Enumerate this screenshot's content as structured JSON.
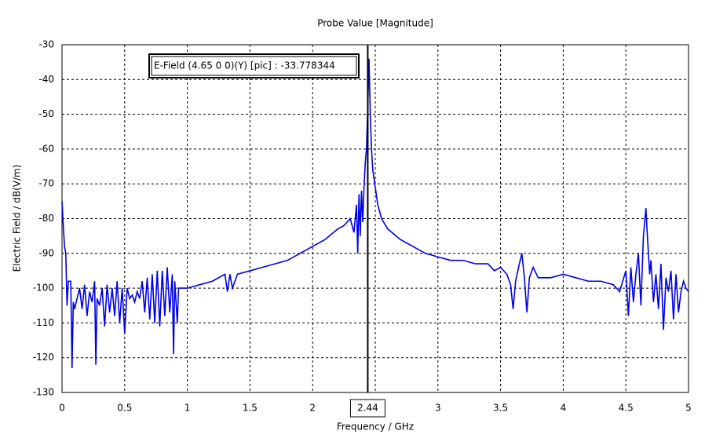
{
  "chart_data": {
    "type": "line",
    "title": "Probe Value [Magnitude]",
    "xlabel": "Frequency / GHz",
    "ylabel": "Electric Field / dB(V/m)",
    "annotation": "E-Field (4.65 0 0)(Y) [pic] : -33.778344",
    "marker_x": 2.44,
    "grid": true,
    "color": "#0000e6",
    "xlim": [
      0,
      5
    ],
    "xticks": [
      0,
      0.5,
      1,
      1.5,
      2,
      2.5,
      3,
      3.5,
      4,
      4.5,
      5
    ],
    "ylim": [
      -130,
      -30
    ],
    "yticks": [
      -30,
      -40,
      -50,
      -60,
      -70,
      -80,
      -90,
      -100,
      -110,
      -120,
      -130
    ],
    "x": [
      0,
      0.01,
      0.02,
      0.03,
      0.04,
      0.05,
      0.07,
      0.08,
      0.09,
      0.1,
      0.12,
      0.14,
      0.16,
      0.18,
      0.2,
      0.22,
      0.24,
      0.26,
      0.27,
      0.28,
      0.3,
      0.32,
      0.34,
      0.36,
      0.38,
      0.4,
      0.42,
      0.44,
      0.46,
      0.48,
      0.5,
      0.52,
      0.54,
      0.56,
      0.58,
      0.6,
      0.62,
      0.64,
      0.66,
      0.68,
      0.7,
      0.72,
      0.74,
      0.76,
      0.78,
      0.8,
      0.82,
      0.84,
      0.86,
      0.88,
      0.89,
      0.9,
      0.92,
      0.93,
      1.0,
      1.1,
      1.2,
      1.3,
      1.32,
      1.34,
      1.36,
      1.4,
      1.5,
      1.6,
      1.7,
      1.8,
      1.9,
      2.0,
      2.1,
      2.2,
      2.25,
      2.3,
      2.33,
      2.35,
      2.36,
      2.37,
      2.38,
      2.39,
      2.4,
      2.41,
      2.42,
      2.43,
      2.44,
      2.45,
      2.46,
      2.47,
      2.48,
      2.5,
      2.52,
      2.55,
      2.6,
      2.7,
      2.8,
      2.9,
      3.0,
      3.1,
      3.2,
      3.3,
      3.4,
      3.45,
      3.5,
      3.55,
      3.58,
      3.6,
      3.62,
      3.65,
      3.67,
      3.69,
      3.71,
      3.73,
      3.76,
      3.8,
      3.9,
      4.0,
      4.1,
      4.2,
      4.3,
      4.4,
      4.45,
      4.5,
      4.52,
      4.54,
      4.56,
      4.58,
      4.6,
      4.62,
      4.64,
      4.66,
      4.67,
      4.69,
      4.7,
      4.72,
      4.74,
      4.76,
      4.78,
      4.8,
      4.82,
      4.84,
      4.86,
      4.88,
      4.9,
      4.92,
      4.94,
      4.96,
      4.98,
      5.0
    ],
    "values": [
      -75,
      -82,
      -88,
      -90,
      -105,
      -98,
      -98,
      -123,
      -104,
      -106,
      -103,
      -100,
      -106,
      -99,
      -108,
      -101,
      -104,
      -98,
      -122,
      -103,
      -105,
      -100,
      -111,
      -99,
      -107,
      -100,
      -108,
      -98,
      -110,
      -100,
      -113,
      -100,
      -103,
      -102,
      -104,
      -101,
      -103,
      -98,
      -107,
      -97,
      -109,
      -96,
      -110,
      -95,
      -111,
      -95,
      -108,
      -94,
      -107,
      -96,
      -119,
      -98,
      -110,
      -100,
      -100,
      -99,
      -98,
      -96,
      -101,
      -96,
      -100,
      -96,
      -95,
      -94,
      -93,
      -92,
      -90,
      -88,
      -86,
      -83,
      -82,
      -80,
      -84,
      -76,
      -90,
      -73,
      -85,
      -72,
      -81,
      -71,
      -64,
      -60,
      -48,
      -34,
      -50,
      -60,
      -66,
      -71,
      -76,
      -80,
      -83,
      -86,
      -88,
      -90,
      -91,
      -92,
      -92,
      -93,
      -93,
      -95,
      -94,
      -96,
      -99,
      -106,
      -98,
      -93,
      -90,
      -97,
      -107,
      -97,
      -94,
      -97,
      -97,
      -96,
      -97,
      -98,
      -98,
      -99,
      -101,
      -95,
      -108,
      -94,
      -104,
      -96,
      -90,
      -105,
      -85,
      -77,
      -84,
      -96,
      -92,
      -104,
      -96,
      -106,
      -93,
      -112,
      -97,
      -101,
      -95,
      -109,
      -96,
      -107,
      -101,
      -98,
      -100,
      -101
    ]
  }
}
